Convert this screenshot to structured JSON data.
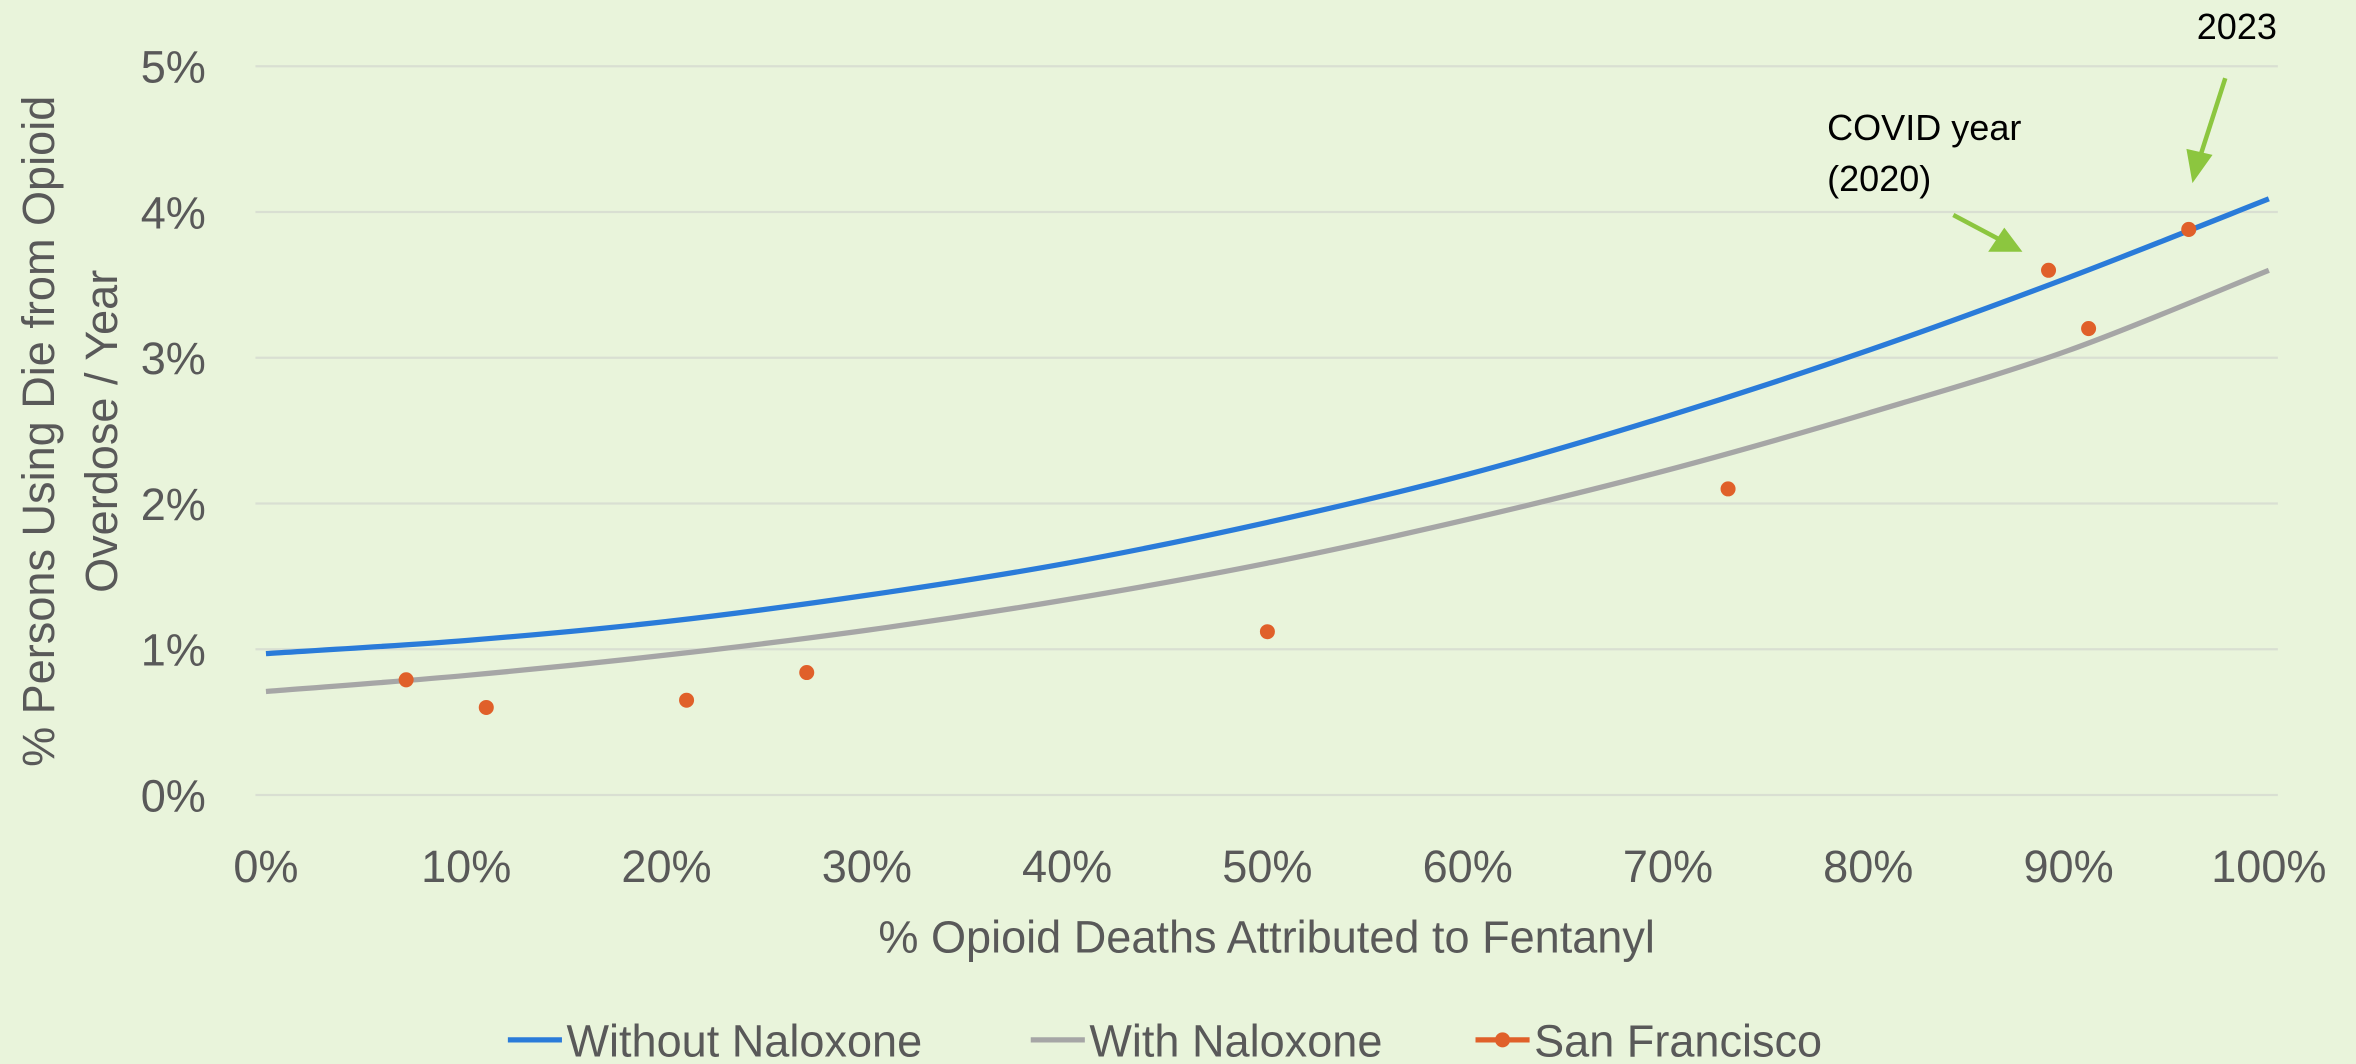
{
  "chart_data": {
    "type": "line",
    "xlabel": "% Opioid Deaths Attributed to Fentanyl",
    "ylabel": [
      "% Persons Using Die from Opioid",
      "Overdose / Year"
    ],
    "xlim": [
      0,
      100
    ],
    "ylim": [
      0,
      5
    ],
    "xticks": [
      {
        "value": 0,
        "label": "0%"
      },
      {
        "value": 10,
        "label": "10%"
      },
      {
        "value": 20,
        "label": "20%"
      },
      {
        "value": 30,
        "label": "30%"
      },
      {
        "value": 40,
        "label": "40%"
      },
      {
        "value": 50,
        "label": "50%"
      },
      {
        "value": 60,
        "label": "60%"
      },
      {
        "value": 70,
        "label": "70%"
      },
      {
        "value": 80,
        "label": "80%"
      },
      {
        "value": 90,
        "label": "90%"
      },
      {
        "value": 100,
        "label": "100%"
      }
    ],
    "yticks": [
      {
        "value": 0,
        "label": "0%"
      },
      {
        "value": 1,
        "label": "1%"
      },
      {
        "value": 2,
        "label": "2%"
      },
      {
        "value": 3,
        "label": "3%"
      },
      {
        "value": 4,
        "label": "4%"
      },
      {
        "value": 5,
        "label": "5%"
      }
    ],
    "grid": true,
    "legend": "bottom",
    "series": [
      {
        "name": "Without Naloxone",
        "color": "#2a7bd9",
        "style": "line",
        "x": [
          0,
          10,
          20,
          30,
          40,
          50,
          60,
          70,
          80,
          90,
          100
        ],
        "values": [
          0.97,
          1.06,
          1.19,
          1.37,
          1.59,
          1.87,
          2.2,
          2.6,
          3.05,
          3.55,
          4.09
        ]
      },
      {
        "name": "With Naloxone",
        "color": "#a6a6a6",
        "style": "line",
        "x": [
          0,
          10,
          20,
          30,
          40,
          50,
          60,
          70,
          80,
          90,
          100
        ],
        "values": [
          0.71,
          0.82,
          0.96,
          1.13,
          1.34,
          1.59,
          1.89,
          2.23,
          2.62,
          3.05,
          3.6
        ]
      },
      {
        "name": "San Francisco",
        "color": "#e0602a",
        "style": "markers",
        "x": [
          7,
          11,
          21,
          27,
          50,
          73,
          89,
          91,
          96
        ],
        "values": [
          0.79,
          0.6,
          0.65,
          0.84,
          1.12,
          2.1,
          3.6,
          3.2,
          3.88
        ]
      }
    ],
    "annotations": [
      "COVID year",
      "(2020)",
      "2023"
    ]
  }
}
